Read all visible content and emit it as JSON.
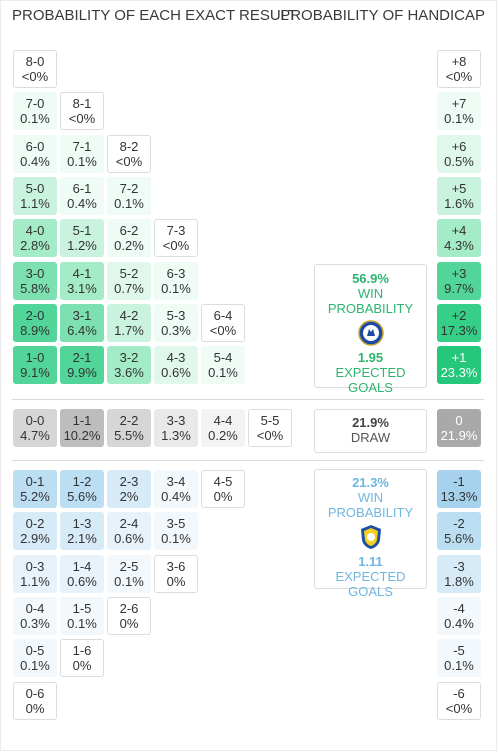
{
  "headers": {
    "exact": "PROBABILITY OF EACH EXACT RESULT",
    "handicap": "PROBABILITY OF HANDICAP"
  },
  "home": {
    "win_pct": "56.9%",
    "win_label": "WIN PROBABILITY",
    "xg": "1.95",
    "xg_label": "EXPECTED GOALS",
    "accent": "#2db46e"
  },
  "draw": {
    "pct": "21.9%",
    "label": "DRAW"
  },
  "away": {
    "win_pct": "21.3%",
    "win_label": "WIN PROBABILITY",
    "xg": "1.11",
    "xg_label": "EXPECTED GOALS",
    "accent": "#6fb6e0"
  },
  "home_wins": [
    [
      {
        "s": "8-0",
        "p": "<0%",
        "v": 0
      }
    ],
    [
      {
        "s": "7-0",
        "p": "0.1%",
        "v": 0.1
      },
      {
        "s": "8-1",
        "p": "<0%",
        "v": 0
      }
    ],
    [
      {
        "s": "6-0",
        "p": "0.4%",
        "v": 0.4
      },
      {
        "s": "7-1",
        "p": "0.1%",
        "v": 0.1
      },
      {
        "s": "8-2",
        "p": "<0%",
        "v": 0
      }
    ],
    [
      {
        "s": "5-0",
        "p": "1.1%",
        "v": 1.1
      },
      {
        "s": "6-1",
        "p": "0.4%",
        "v": 0.4
      },
      {
        "s": "7-2",
        "p": "0.1%",
        "v": 0.1
      }
    ],
    [
      {
        "s": "4-0",
        "p": "2.8%",
        "v": 2.8
      },
      {
        "s": "5-1",
        "p": "1.2%",
        "v": 1.2
      },
      {
        "s": "6-2",
        "p": "0.2%",
        "v": 0.2
      },
      {
        "s": "7-3",
        "p": "<0%",
        "v": 0
      }
    ],
    [
      {
        "s": "3-0",
        "p": "5.8%",
        "v": 5.8
      },
      {
        "s": "4-1",
        "p": "3.1%",
        "v": 3.1
      },
      {
        "s": "5-2",
        "p": "0.7%",
        "v": 0.7
      },
      {
        "s": "6-3",
        "p": "0.1%",
        "v": 0.1
      }
    ],
    [
      {
        "s": "2-0",
        "p": "8.9%",
        "v": 8.9
      },
      {
        "s": "3-1",
        "p": "6.4%",
        "v": 6.4
      },
      {
        "s": "4-2",
        "p": "1.7%",
        "v": 1.7
      },
      {
        "s": "5-3",
        "p": "0.3%",
        "v": 0.3
      },
      {
        "s": "6-4",
        "p": "<0%",
        "v": 0
      }
    ],
    [
      {
        "s": "1-0",
        "p": "9.1%",
        "v": 9.1
      },
      {
        "s": "2-1",
        "p": "9.9%",
        "v": 9.9
      },
      {
        "s": "3-2",
        "p": "3.6%",
        "v": 3.6
      },
      {
        "s": "4-3",
        "p": "0.6%",
        "v": 0.6
      },
      {
        "s": "5-4",
        "p": "0.1%",
        "v": 0.1
      }
    ]
  ],
  "draws": [
    {
      "s": "0-0",
      "p": "4.7%",
      "v": 4.7
    },
    {
      "s": "1-1",
      "p": "10.2%",
      "v": 10.2
    },
    {
      "s": "2-2",
      "p": "5.5%",
      "v": 5.5
    },
    {
      "s": "3-3",
      "p": "1.3%",
      "v": 1.3
    },
    {
      "s": "4-4",
      "p": "0.2%",
      "v": 0.2
    },
    {
      "s": "5-5",
      "p": "<0%",
      "v": 0
    }
  ],
  "away_wins": [
    [
      {
        "s": "0-1",
        "p": "5.2%",
        "v": 5.2
      },
      {
        "s": "1-2",
        "p": "5.6%",
        "v": 5.6
      },
      {
        "s": "2-3",
        "p": "2%",
        "v": 2
      },
      {
        "s": "3-4",
        "p": "0.4%",
        "v": 0.4
      },
      {
        "s": "4-5",
        "p": "0%",
        "v": 0
      }
    ],
    [
      {
        "s": "0-2",
        "p": "2.9%",
        "v": 2.9
      },
      {
        "s": "1-3",
        "p": "2.1%",
        "v": 2.1
      },
      {
        "s": "2-4",
        "p": "0.6%",
        "v": 0.6
      },
      {
        "s": "3-5",
        "p": "0.1%",
        "v": 0.1
      }
    ],
    [
      {
        "s": "0-3",
        "p": "1.1%",
        "v": 1.1
      },
      {
        "s": "1-4",
        "p": "0.6%",
        "v": 0.6
      },
      {
        "s": "2-5",
        "p": "0.1%",
        "v": 0.1
      },
      {
        "s": "3-6",
        "p": "0%",
        "v": 0
      }
    ],
    [
      {
        "s": "0-4",
        "p": "0.3%",
        "v": 0.3
      },
      {
        "s": "1-5",
        "p": "0.1%",
        "v": 0.1
      },
      {
        "s": "2-6",
        "p": "0%",
        "v": 0
      }
    ],
    [
      {
        "s": "0-5",
        "p": "0.1%",
        "v": 0.1
      },
      {
        "s": "1-6",
        "p": "0%",
        "v": 0
      }
    ],
    [
      {
        "s": "0-6",
        "p": "0%",
        "v": 0
      }
    ]
  ],
  "handicap_home": [
    {
      "s": "+8",
      "p": "<0%",
      "v": 0
    },
    {
      "s": "+7",
      "p": "0.1%",
      "v": 0.1
    },
    {
      "s": "+6",
      "p": "0.5%",
      "v": 0.5
    },
    {
      "s": "+5",
      "p": "1.6%",
      "v": 1.6
    },
    {
      "s": "+4",
      "p": "4.3%",
      "v": 4.3
    },
    {
      "s": "+3",
      "p": "9.7%",
      "v": 9.7
    },
    {
      "s": "+2",
      "p": "17.3%",
      "v": 17.3
    },
    {
      "s": "+1",
      "p": "23.3%",
      "v": 23.3
    }
  ],
  "handicap_draw": {
    "s": "0",
    "p": "21.9%",
    "v": 21.9
  },
  "handicap_away": [
    {
      "s": "-1",
      "p": "13.3%",
      "v": 13.3
    },
    {
      "s": "-2",
      "p": "5.6%",
      "v": 5.6
    },
    {
      "s": "-3",
      "p": "1.8%",
      "v": 1.8
    },
    {
      "s": "-4",
      "p": "0.4%",
      "v": 0.4
    },
    {
      "s": "-5",
      "p": "0.1%",
      "v": 0.1
    },
    {
      "s": "-6",
      "p": "<0%",
      "v": 0
    }
  ]
}
